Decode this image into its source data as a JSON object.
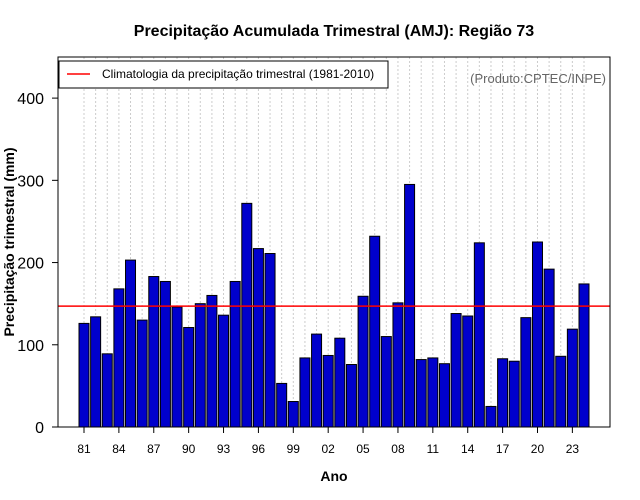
{
  "chart_data": {
    "type": "bar",
    "title": "Precipitação Acumulada Trimestral (AMJ): Região 73",
    "xlabel": "Ano",
    "ylabel": "Precipitação trimestral (mm)",
    "ylim": [
      0,
      450
    ],
    "yticks": [
      0,
      100,
      200,
      300,
      400
    ],
    "ytick_labels": [
      "0",
      "100",
      "200",
      "300",
      "400"
    ],
    "grid": "vertical dotted",
    "categories": [
      "1981",
      "1982",
      "1983",
      "1984",
      "1985",
      "1986",
      "1987",
      "1988",
      "1989",
      "1990",
      "1991",
      "1992",
      "1993",
      "1994",
      "1995",
      "1996",
      "1997",
      "1998",
      "1999",
      "2000",
      "2001",
      "2002",
      "2003",
      "2004",
      "2005",
      "2006",
      "2007",
      "2008",
      "2009",
      "2010",
      "2011",
      "2012",
      "2013",
      "2014",
      "2015",
      "2016",
      "2017",
      "2018",
      "2019",
      "2020",
      "2021",
      "2022",
      "2023",
      "2024"
    ],
    "xtick_labels": [
      "81",
      "84",
      "87",
      "90",
      "93",
      "96",
      "99",
      "02",
      "05",
      "08",
      "11",
      "14",
      "17",
      "20",
      "23"
    ],
    "series": [
      {
        "name": "Precipitação trimestral",
        "color": "#0000cc",
        "values": [
          126,
          134,
          89,
          168,
          203,
          130,
          183,
          177,
          146,
          121,
          150,
          160,
          136,
          177,
          272,
          217,
          211,
          53,
          31,
          84,
          113,
          87,
          108,
          76,
          159,
          232,
          110,
          151,
          295,
          82,
          84,
          77,
          138,
          135,
          224,
          25,
          83,
          80,
          133,
          225,
          192,
          86,
          119,
          174
        ]
      }
    ],
    "reference_line": {
      "label": "Climatologia da precipitação trimestral (1981-2010)",
      "value": 147,
      "color": "#ff0000"
    },
    "legend_position": "top-left",
    "source_note": "(Produto:CPTEC/INPE)"
  }
}
